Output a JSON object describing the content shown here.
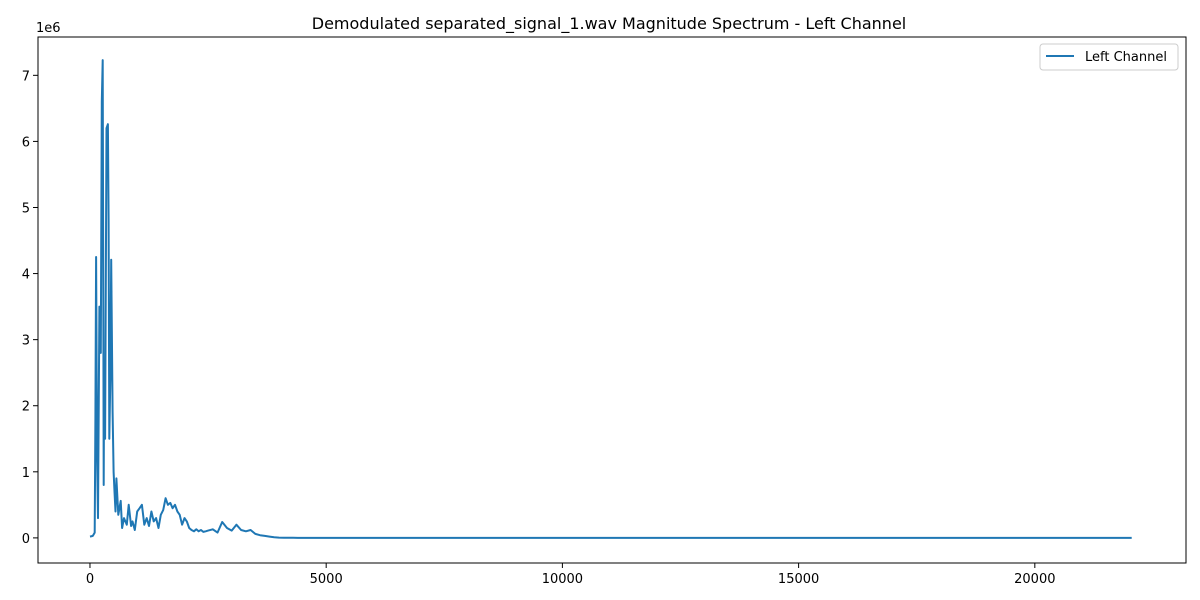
{
  "chart_data": {
    "type": "line",
    "title": "Demodulated separated_signal_1.wav Magnitude Spectrum - Left Channel",
    "xlabel": "",
    "ylabel": "",
    "y_offset_label": "1e6",
    "y_scale": 1000000,
    "xlim": [
      -1100,
      23200
    ],
    "ylim": [
      -380000,
      7580000
    ],
    "x_ticks": [
      0,
      5000,
      10000,
      15000,
      20000
    ],
    "y_ticks": [
      0,
      1000000,
      2000000,
      3000000,
      4000000,
      5000000,
      6000000,
      7000000
    ],
    "grid": false,
    "legend_position": "top-right",
    "series": [
      {
        "name": "Left Channel",
        "color": "#1f77b4",
        "x": [
          0,
          60,
          100,
          115,
          130,
          150,
          170,
          200,
          230,
          250,
          270,
          285,
          290,
          300,
          320,
          350,
          380,
          395,
          410,
          430,
          450,
          480,
          500,
          520,
          540,
          560,
          600,
          650,
          680,
          720,
          780,
          820,
          870,
          900,
          950,
          1000,
          1050,
          1100,
          1150,
          1200,
          1250,
          1300,
          1350,
          1400,
          1450,
          1500,
          1550,
          1600,
          1650,
          1700,
          1750,
          1800,
          1850,
          1900,
          1950,
          2000,
          2050,
          2100,
          2150,
          2200,
          2250,
          2300,
          2350,
          2400,
          2450,
          2500,
          2600,
          2700,
          2800,
          2900,
          3000,
          3100,
          3200,
          3300,
          3400,
          3500,
          3600,
          3700,
          3800,
          3900,
          4000,
          4100,
          4200,
          4300,
          4400,
          4500,
          5000,
          7500,
          10000,
          12500,
          15000,
          17500,
          20000,
          22050
        ],
        "values": [
          20000,
          30000,
          80000,
          1800000,
          4250000,
          1200000,
          300000,
          3500000,
          2800000,
          6600000,
          7230000,
          3000000,
          800000,
          2500000,
          1500000,
          6200000,
          6260000,
          4800000,
          1500000,
          2400000,
          4210000,
          1900000,
          1000000,
          700000,
          400000,
          900000,
          350000,
          560000,
          150000,
          300000,
          200000,
          500000,
          180000,
          250000,
          120000,
          400000,
          450000,
          500000,
          200000,
          300000,
          180000,
          400000,
          250000,
          300000,
          150000,
          350000,
          420000,
          600000,
          500000,
          530000,
          450000,
          500000,
          400000,
          350000,
          200000,
          300000,
          250000,
          150000,
          120000,
          100000,
          130000,
          100000,
          120000,
          90000,
          100000,
          110000,
          130000,
          80000,
          240000,
          150000,
          110000,
          200000,
          120000,
          100000,
          120000,
          60000,
          40000,
          30000,
          20000,
          10000,
          5000,
          3000,
          2000,
          1000,
          500,
          300,
          0,
          0,
          0,
          0,
          0,
          0,
          0,
          0
        ]
      }
    ]
  }
}
